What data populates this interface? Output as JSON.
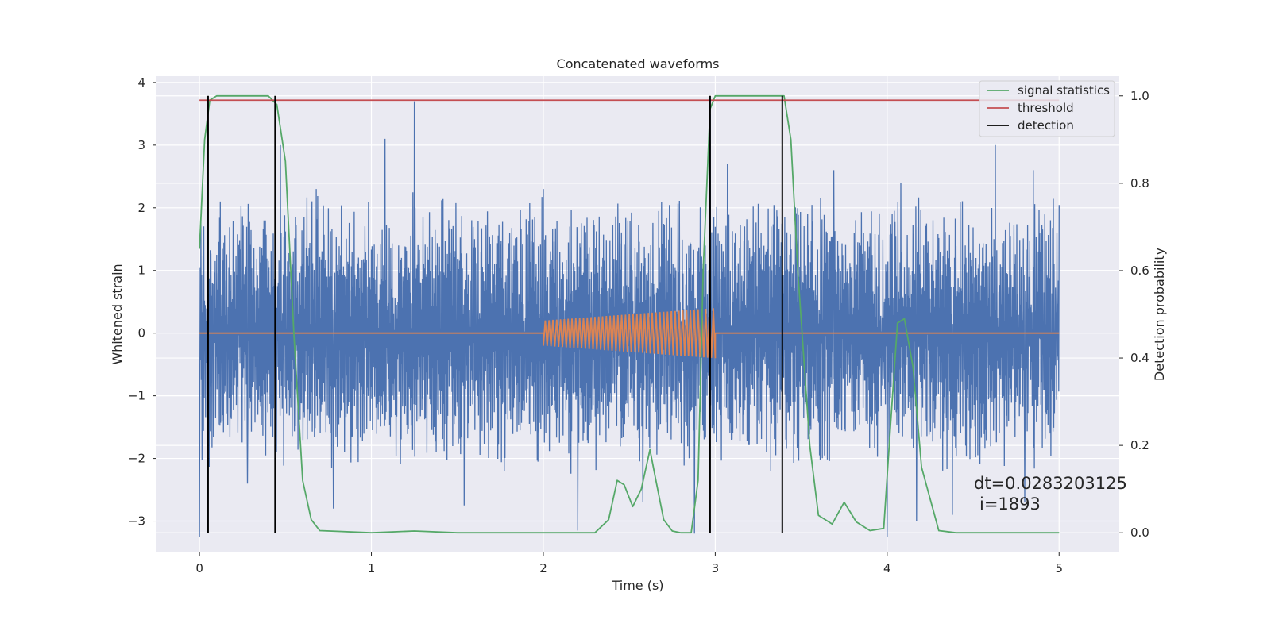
{
  "chart_data": {
    "type": "line",
    "title": "Concatenated waveforms",
    "xlabel": "Time (s)",
    "ylabel": "Whitened strain",
    "y2label": "Detection probability",
    "xlim": [
      -0.25,
      5.35
    ],
    "ylim": [
      -3.5,
      4.1
    ],
    "y2lim": [
      -0.045,
      1.045
    ],
    "xticks": [
      0,
      1,
      2,
      3,
      4,
      5
    ],
    "yticks": [
      -3,
      -2,
      -1,
      0,
      1,
      2,
      3,
      4
    ],
    "y2ticks": [
      "0.0",
      "0.2",
      "0.4",
      "0.6",
      "0.8",
      "1.0"
    ],
    "grid": true,
    "legend_position": "top-right",
    "annotation": {
      "line1": "dt=0.0283203125",
      "line2": "i=1893",
      "x": 4.5,
      "y": -2.45
    },
    "colors": {
      "noise": "#4c72b0",
      "injection": "#dd8452",
      "statistics": "#55a868",
      "threshold": "#c44e52",
      "detection": "#000000",
      "background": "#eaeaf2"
    },
    "series": [
      {
        "name": "",
        "description_axis": "left",
        "kind": "noise",
        "x_range": [
          0,
          5
        ],
        "abs_envelope": 2.3,
        "spikes_up": [
          [
            0.05,
            2.45
          ],
          [
            0.12,
            2.1
          ],
          [
            0.47,
            3.0
          ],
          [
            0.68,
            2.3
          ],
          [
            1.25,
            3.7
          ],
          [
            1.08,
            3.1
          ],
          [
            1.54,
            2.6
          ],
          [
            2.97,
            3.5
          ],
          [
            3.07,
            2.7
          ],
          [
            4.63,
            3.0
          ],
          [
            3.69,
            2.6
          ],
          [
            4.08,
            2.4
          ],
          [
            2.0,
            2.3
          ],
          [
            4.85,
            2.6
          ]
        ],
        "spikes_down": [
          [
            0.0,
            -3.25
          ],
          [
            0.78,
            -2.8
          ],
          [
            1.54,
            -2.75
          ],
          [
            2.2,
            -3.15
          ],
          [
            2.58,
            -2.7
          ],
          [
            2.88,
            -3.2
          ],
          [
            3.39,
            -2.85
          ],
          [
            4.0,
            -3.25
          ],
          [
            4.17,
            -3.0
          ],
          [
            4.8,
            -2.7
          ],
          [
            0.28,
            -2.4
          ],
          [
            4.38,
            -2.9
          ]
        ]
      },
      {
        "name": "",
        "kind": "injection",
        "x_range": [
          2.0,
          3.0
        ],
        "amplitude_start": 0.2,
        "amplitude_end": 0.4,
        "cycles": 45
      },
      {
        "name": "signal statistics",
        "axis": "right",
        "x": [
          0.0,
          0.03,
          0.06,
          0.1,
          0.2,
          0.4,
          0.45,
          0.5,
          0.55,
          0.6,
          0.65,
          0.7,
          1.0,
          1.25,
          1.5,
          2.3,
          2.38,
          2.43,
          2.47,
          2.52,
          2.57,
          2.62,
          2.65,
          2.7,
          2.75,
          2.8,
          2.86,
          2.9,
          2.93,
          2.97,
          3.0,
          3.05,
          3.4,
          3.44,
          3.48,
          3.55,
          3.6,
          3.68,
          3.75,
          3.82,
          3.9,
          3.98,
          4.02,
          4.06,
          4.1,
          4.15,
          4.2,
          4.3,
          4.4,
          5.0
        ],
        "y": [
          0.65,
          0.9,
          0.99,
          1.0,
          1.0,
          1.0,
          0.98,
          0.85,
          0.45,
          0.12,
          0.03,
          0.005,
          0.0,
          0.004,
          0.0,
          0.0,
          0.03,
          0.12,
          0.11,
          0.06,
          0.1,
          0.19,
          0.13,
          0.03,
          0.004,
          0.0,
          0.0,
          0.12,
          0.6,
          0.97,
          1.0,
          1.0,
          1.0,
          0.9,
          0.6,
          0.2,
          0.04,
          0.02,
          0.07,
          0.025,
          0.005,
          0.01,
          0.25,
          0.48,
          0.49,
          0.38,
          0.15,
          0.005,
          0.0,
          0.0
        ]
      },
      {
        "name": "threshold",
        "axis": "right",
        "x": [
          0,
          5
        ],
        "y": [
          0.99,
          0.99
        ]
      },
      {
        "name": "detection",
        "axis": "right",
        "kind": "vlines",
        "x": [
          0.05,
          0.44,
          2.97,
          3.39
        ],
        "ymin": 0.0,
        "ymax": 1.0
      }
    ]
  }
}
